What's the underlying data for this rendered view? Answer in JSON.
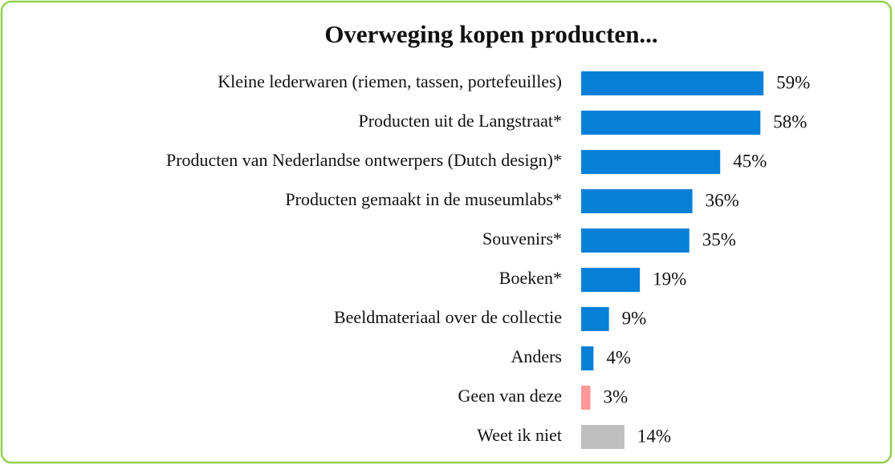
{
  "chart_data": {
    "type": "bar",
    "orientation": "horizontal",
    "title": "Overweging kopen producten...",
    "categories": [
      "Kleine lederwaren (riemen, tassen, portefeuilles)",
      "Producten uit de Langstraat*",
      "Producten van Nederlandse ontwerpers (Dutch design)*",
      "Producten gemaakt in de museumlabs*",
      "Souvenirs*",
      "Boeken*",
      "Beeldmateriaal over de collectie",
      "Anders",
      "Geen van deze",
      "Weet ik niet"
    ],
    "values": [
      59,
      58,
      45,
      36,
      35,
      19,
      9,
      4,
      3,
      14
    ],
    "value_labels": [
      "59%",
      "58%",
      "45%",
      "36%",
      "35%",
      "19%",
      "9%",
      "4%",
      "3%",
      "14%"
    ],
    "colors": [
      "#0680d7",
      "#0680d7",
      "#0680d7",
      "#0680d7",
      "#0680d7",
      "#0680d7",
      "#0680d7",
      "#0680d7",
      "#ff9999",
      "#bfbfbf"
    ]
  }
}
